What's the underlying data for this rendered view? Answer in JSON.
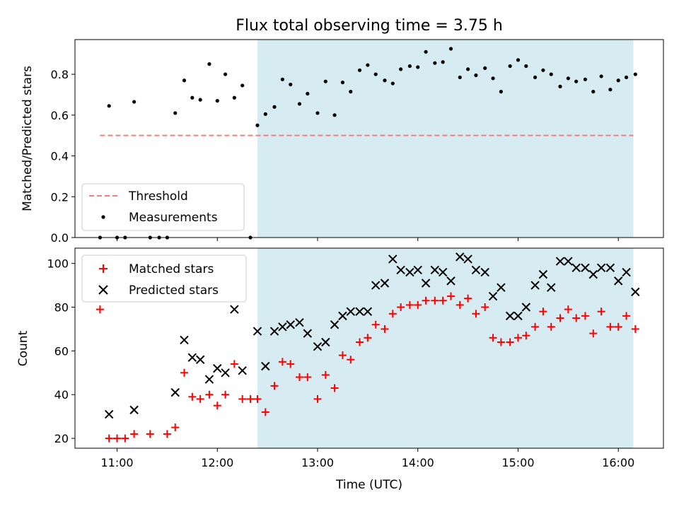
{
  "chart_data": {
    "type": "scatter",
    "title": "Flux total observing time = 3.75 h",
    "xlabel": "Time (UTC)",
    "x_ticks": [
      "11:00",
      "12:00",
      "13:00",
      "14:00",
      "15:00",
      "16:00"
    ],
    "xlim_hours": [
      10.58,
      16.45
    ],
    "shaded_span_hours": [
      12.4,
      16.15
    ],
    "shade_color": "#add8e6",
    "top": {
      "ylabel": "Matched/Predicted stars",
      "ylim": [
        0,
        0.97
      ],
      "y_ticks": [
        0.0,
        0.2,
        0.4,
        0.6,
        0.8
      ],
      "legend": [
        {
          "label": "Threshold",
          "style": "dashed-line",
          "color": "#f08080"
        },
        {
          "label": "Measurements",
          "style": "dot",
          "color": "#000000"
        }
      ],
      "threshold": {
        "value": 0.5,
        "x_start_hours": 10.83,
        "x_end_hours": 16.15
      },
      "measurements": [
        [
          10.83,
          0.0
        ],
        [
          10.92,
          0.645
        ],
        [
          11.0,
          0.0
        ],
        [
          11.08,
          0.0
        ],
        [
          11.17,
          0.665
        ],
        [
          11.33,
          0.0
        ],
        [
          11.42,
          0.0
        ],
        [
          11.5,
          0.0
        ],
        [
          11.58,
          0.61
        ],
        [
          11.67,
          0.77
        ],
        [
          11.75,
          0.685
        ],
        [
          11.83,
          0.675
        ],
        [
          11.92,
          0.85
        ],
        [
          12.0,
          0.67
        ],
        [
          12.08,
          0.8
        ],
        [
          12.17,
          0.685
        ],
        [
          12.25,
          0.745
        ],
        [
          12.33,
          0.0
        ],
        [
          12.4,
          0.55
        ],
        [
          12.48,
          0.605
        ],
        [
          12.57,
          0.64
        ],
        [
          12.65,
          0.775
        ],
        [
          12.73,
          0.75
        ],
        [
          12.82,
          0.655
        ],
        [
          12.9,
          0.705
        ],
        [
          13.0,
          0.61
        ],
        [
          13.08,
          0.765
        ],
        [
          13.17,
          0.6
        ],
        [
          13.25,
          0.76
        ],
        [
          13.33,
          0.715
        ],
        [
          13.42,
          0.82
        ],
        [
          13.5,
          0.845
        ],
        [
          13.58,
          0.8
        ],
        [
          13.67,
          0.77
        ],
        [
          13.75,
          0.755
        ],
        [
          13.83,
          0.825
        ],
        [
          13.92,
          0.84
        ],
        [
          14.0,
          0.835
        ],
        [
          14.08,
          0.91
        ],
        [
          14.17,
          0.855
        ],
        [
          14.25,
          0.86
        ],
        [
          14.33,
          0.925
        ],
        [
          14.42,
          0.785
        ],
        [
          14.5,
          0.825
        ],
        [
          14.58,
          0.795
        ],
        [
          14.67,
          0.83
        ],
        [
          14.75,
          0.78
        ],
        [
          14.83,
          0.715
        ],
        [
          14.92,
          0.84
        ],
        [
          15.0,
          0.87
        ],
        [
          15.08,
          0.84
        ],
        [
          15.17,
          0.785
        ],
        [
          15.25,
          0.82
        ],
        [
          15.33,
          0.8
        ],
        [
          15.42,
          0.74
        ],
        [
          15.5,
          0.78
        ],
        [
          15.58,
          0.765
        ],
        [
          15.67,
          0.775
        ],
        [
          15.75,
          0.715
        ],
        [
          15.83,
          0.79
        ],
        [
          15.92,
          0.725
        ],
        [
          16.0,
          0.77
        ],
        [
          16.08,
          0.785
        ],
        [
          16.17,
          0.8
        ]
      ]
    },
    "bottom": {
      "ylabel": "Count",
      "ylim": [
        15.5,
        107
      ],
      "y_ticks": [
        20,
        40,
        60,
        80,
        100
      ],
      "legend": [
        {
          "label": "Matched stars",
          "style": "plus",
          "color": "#ff0000"
        },
        {
          "label": "Predicted stars",
          "style": "cross",
          "color": "#000000"
        }
      ],
      "matched": [
        [
          10.83,
          79
        ],
        [
          10.92,
          20
        ],
        [
          11.0,
          20
        ],
        [
          11.08,
          20
        ],
        [
          11.17,
          22
        ],
        [
          11.33,
          22
        ],
        [
          11.5,
          22
        ],
        [
          11.58,
          25
        ],
        [
          11.67,
          50
        ],
        [
          11.75,
          39
        ],
        [
          11.83,
          38
        ],
        [
          11.92,
          40
        ],
        [
          12.0,
          35
        ],
        [
          12.08,
          40
        ],
        [
          12.17,
          54
        ],
        [
          12.25,
          38
        ],
        [
          12.33,
          38
        ],
        [
          12.4,
          38
        ],
        [
          12.48,
          32
        ],
        [
          12.57,
          44
        ],
        [
          12.65,
          55
        ],
        [
          12.73,
          54
        ],
        [
          12.82,
          48
        ],
        [
          12.9,
          48
        ],
        [
          13.0,
          38
        ],
        [
          13.08,
          49
        ],
        [
          13.17,
          43
        ],
        [
          13.25,
          58
        ],
        [
          13.33,
          56
        ],
        [
          13.42,
          64
        ],
        [
          13.5,
          66
        ],
        [
          13.58,
          72
        ],
        [
          13.67,
          70
        ],
        [
          13.75,
          77
        ],
        [
          13.83,
          80
        ],
        [
          13.92,
          81
        ],
        [
          14.0,
          81
        ],
        [
          14.08,
          83
        ],
        [
          14.17,
          83
        ],
        [
          14.25,
          83
        ],
        [
          14.33,
          85
        ],
        [
          14.42,
          81
        ],
        [
          14.5,
          84
        ],
        [
          14.58,
          77
        ],
        [
          14.67,
          80
        ],
        [
          14.75,
          66
        ],
        [
          14.83,
          64
        ],
        [
          14.92,
          64
        ],
        [
          15.0,
          66
        ],
        [
          15.08,
          67
        ],
        [
          15.17,
          71
        ],
        [
          15.25,
          78
        ],
        [
          15.33,
          71
        ],
        [
          15.42,
          75
        ],
        [
          15.5,
          79
        ],
        [
          15.58,
          75
        ],
        [
          15.67,
          76
        ],
        [
          15.75,
          68
        ],
        [
          15.83,
          78
        ],
        [
          15.92,
          71
        ],
        [
          16.0,
          71
        ],
        [
          16.08,
          76
        ],
        [
          16.17,
          70
        ]
      ],
      "predicted": [
        [
          10.92,
          31
        ],
        [
          11.17,
          33
        ],
        [
          11.58,
          41
        ],
        [
          11.67,
          65
        ],
        [
          11.75,
          57
        ],
        [
          11.83,
          56
        ],
        [
          11.92,
          47
        ],
        [
          12.0,
          52
        ],
        [
          12.08,
          50
        ],
        [
          12.17,
          79
        ],
        [
          12.25,
          51
        ],
        [
          12.4,
          69
        ],
        [
          12.48,
          53
        ],
        [
          12.57,
          69
        ],
        [
          12.65,
          71
        ],
        [
          12.73,
          72
        ],
        [
          12.82,
          73
        ],
        [
          12.9,
          68
        ],
        [
          13.0,
          62
        ],
        [
          13.08,
          64
        ],
        [
          13.17,
          72
        ],
        [
          13.25,
          76
        ],
        [
          13.33,
          78
        ],
        [
          13.42,
          78
        ],
        [
          13.5,
          78
        ],
        [
          13.58,
          90
        ],
        [
          13.67,
          91
        ],
        [
          13.75,
          102
        ],
        [
          13.83,
          97
        ],
        [
          13.92,
          96
        ],
        [
          14.0,
          97
        ],
        [
          14.08,
          91
        ],
        [
          14.17,
          97
        ],
        [
          14.25,
          96
        ],
        [
          14.33,
          92
        ],
        [
          14.42,
          103
        ],
        [
          14.5,
          102
        ],
        [
          14.58,
          97
        ],
        [
          14.67,
          96
        ],
        [
          14.75,
          85
        ],
        [
          14.83,
          89
        ],
        [
          14.92,
          76
        ],
        [
          15.0,
          76
        ],
        [
          15.08,
          80
        ],
        [
          15.17,
          90
        ],
        [
          15.25,
          95
        ],
        [
          15.33,
          89
        ],
        [
          15.42,
          101
        ],
        [
          15.5,
          101
        ],
        [
          15.58,
          98
        ],
        [
          15.67,
          98
        ],
        [
          15.75,
          95
        ],
        [
          15.83,
          98
        ],
        [
          15.92,
          98
        ],
        [
          16.0,
          92
        ],
        [
          16.08,
          96
        ],
        [
          16.17,
          87
        ]
      ]
    }
  }
}
